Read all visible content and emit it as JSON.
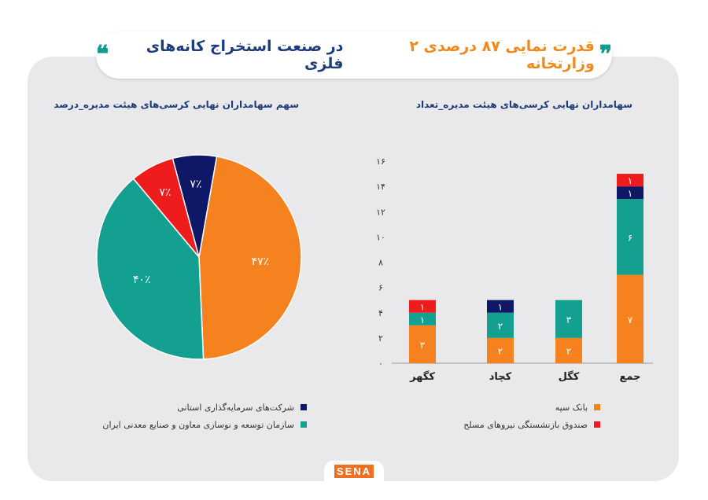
{
  "header": {
    "title_part1": "قدرت نمایی ۸۷ درصدی ۲ وزارتخانه",
    "title_part2": "در صنعت استخراج کانه‌های فلزی",
    "open_quote": "❞",
    "close_quote": "❝"
  },
  "colors": {
    "orange": "#f5821f",
    "teal": "#13a091",
    "navy": "#0f1866",
    "red": "#ee1c1c"
  },
  "chart_data": [
    {
      "type": "pie",
      "title": "سهم سهامداران نهایی کرسی‌های هیئت مدیره_درصد",
      "slices": [
        {
          "name": "بانک سپه",
          "value": 47,
          "label": "۴۷٪",
          "color": "#f5821f"
        },
        {
          "name": "سازمان توسعه و نوسازی معاون و صنایع معدنی ایران",
          "value": 40,
          "label": "۴۰٪",
          "color": "#13a091"
        },
        {
          "name": "صندوق بازنشستگی نیروهای مسلح",
          "value": 7,
          "label": "۷٪",
          "color": "#ee1c1c"
        },
        {
          "name": "شرکت‌های سرمایه‌گذاری استانی",
          "value": 7,
          "label": "۷٪",
          "color": "#0f1866"
        }
      ],
      "legend": [
        "شرکت‌های سرمایه‌گذاری استانی",
        "سازمان توسعه و نوسازی معاون و صنایع معدنی ایران"
      ]
    },
    {
      "type": "bar",
      "stacked": true,
      "title": "سهامداران نهایی کرسی‌های هیئت مدیره_تعداد",
      "categories": [
        "کگهر",
        "کچاد",
        "کگل",
        "جمع"
      ],
      "series": [
        {
          "name": "بانک سپه",
          "color": "#f5821f",
          "values": [
            3,
            2,
            2,
            7
          ]
        },
        {
          "name": "سازمان توسعه و نوسازی معاون و صنایع معدنی ایران",
          "color": "#13a091",
          "values": [
            1,
            2,
            3,
            6
          ]
        },
        {
          "name": "شرکت‌های سرمایه‌گذاری استانی",
          "color": "#0f1866",
          "values": [
            0,
            1,
            0,
            1
          ]
        },
        {
          "name": "صندوق بازنشستگی نیروهای مسلح",
          "color": "#ee1c1c",
          "values": [
            1,
            0,
            0,
            1
          ]
        }
      ],
      "ylim": [
        0,
        16
      ],
      "yticks": [
        "۰",
        "۲",
        "۴",
        "۶",
        "۸",
        "۱۰",
        "۱۲",
        "۱۴",
        "۱۶"
      ],
      "legend": [
        "بانک سپه",
        "صندوق بازنشستگی نیروهای مسلح"
      ]
    }
  ],
  "footer": {
    "logo": "SENA"
  }
}
